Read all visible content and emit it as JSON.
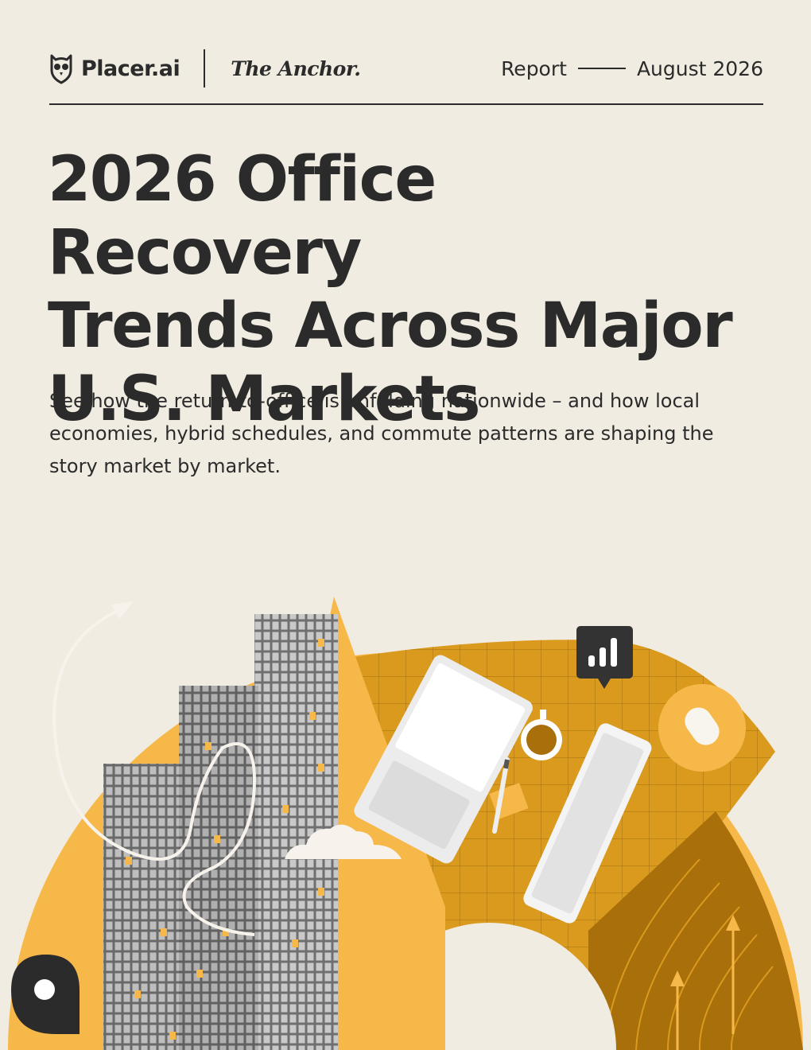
{
  "header": {
    "brand_name": "Placer.ai",
    "partner_name": "The Anchor.",
    "report_label": "Report",
    "report_date": "August 2026"
  },
  "title_lines": [
    "2026 Office Recovery",
    "Trends Across Major",
    "U.S. Markets"
  ],
  "subtitle": "See how the return-to-office is unfolding nationwide – and how local economies, hybrid schedules, and commute patterns are shaping the story market by market.",
  "colors": {
    "background": "#f1ece1",
    "text": "#2b2b2b",
    "light_orange": "#f7b84a",
    "gold": "#d99a1e",
    "dark_gold": "#a86f0a"
  },
  "icons": [
    "owl-logo-icon",
    "bar-chart-bubble-icon",
    "location-pin-icon",
    "curved-arrow-icon",
    "cloud-icon",
    "coffee-cup-icon",
    "pen-icon",
    "mouse-icon"
  ]
}
